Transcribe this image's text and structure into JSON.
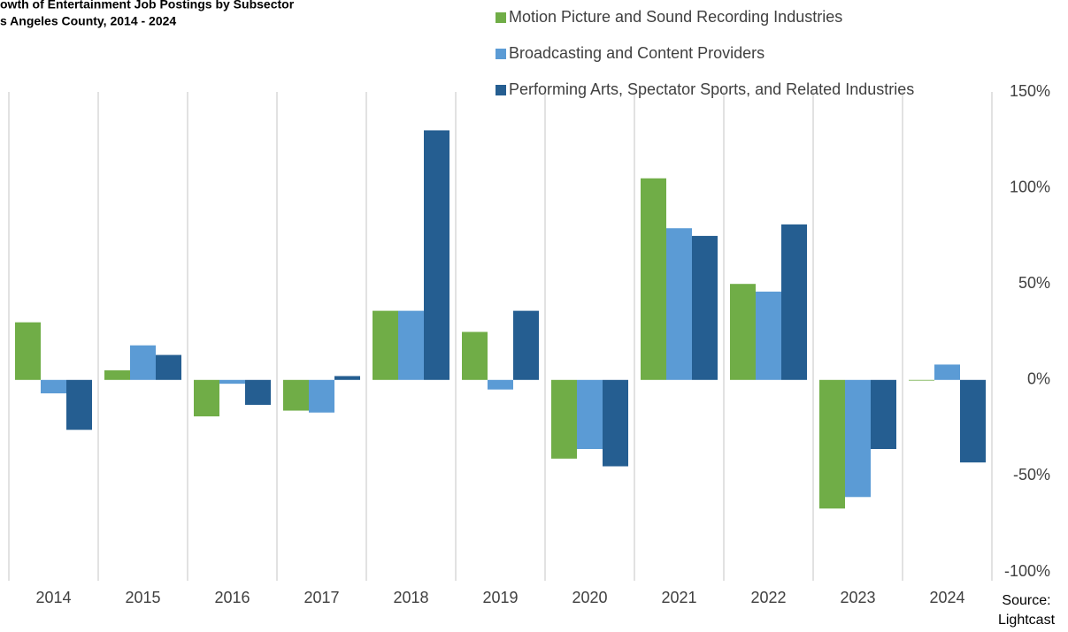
{
  "chart_data": {
    "type": "bar",
    "title": [
      "owth of Entertainment Job Postings by Subsector",
      "s Angeles County, 2014 - 2024"
    ],
    "source": [
      "Source:",
      "Lightcast"
    ],
    "categories": [
      "2014",
      "2015",
      "2016",
      "2017",
      "2018",
      "2019",
      "2020",
      "2021",
      "2022",
      "2023",
      "2024"
    ],
    "series": [
      {
        "name": "Motion Picture and Sound Recording Industries",
        "color": "#70ad47",
        "values": [
          30,
          5,
          -19,
          -16,
          36,
          25,
          -41,
          105,
          50,
          -67,
          0
        ]
      },
      {
        "name": "Broadcasting and Content Providers",
        "color": "#5b9bd5",
        "values": [
          -7,
          18,
          -2,
          -17,
          36,
          -5,
          -36,
          79,
          46,
          -61,
          8
        ]
      },
      {
        "name": "Performing Arts, Spectator Sports, and Related Industries",
        "color": "#255e91",
        "values": [
          -26,
          13,
          -13,
          2,
          130,
          36,
          -45,
          75,
          81,
          -36,
          -43
        ]
      }
    ],
    "ylim": [
      -100,
      150
    ],
    "yticks": [
      {
        "value": -100,
        "label": "-100%"
      },
      {
        "value": -50,
        "label": "-50%"
      },
      {
        "value": 0,
        "label": "0%"
      },
      {
        "value": 50,
        "label": "50%"
      },
      {
        "value": 100,
        "label": "100%"
      },
      {
        "value": 150,
        "label": "150%"
      }
    ],
    "y_axis_side": "right",
    "legend": "top"
  }
}
